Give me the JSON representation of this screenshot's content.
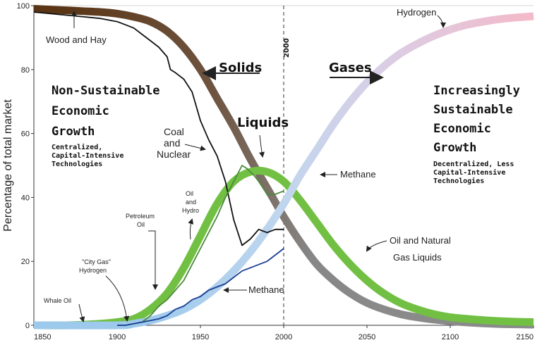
{
  "chart_data": {
    "type": "line",
    "ylabel": "Percentage of total market",
    "xlim": [
      1850,
      2150
    ],
    "ylim": [
      0,
      100
    ],
    "x_ticks": [
      "1850",
      "1900",
      "1950",
      "2000",
      "2050",
      "2100",
      "2150"
    ],
    "y_ticks": [
      "0",
      "20",
      "40",
      "60",
      "80",
      "100"
    ],
    "vline": {
      "x": 2000,
      "label": "2000"
    },
    "series": [
      {
        "name": "Solids",
        "color_start": "#5a3516",
        "color_end": "#8a8a8a",
        "x": [
          1850,
          1870,
          1890,
          1900,
          1910,
          1920,
          1930,
          1940,
          1950,
          1960,
          1970,
          1980,
          1990,
          2000,
          2010,
          2020,
          2030,
          2040,
          2050,
          2060,
          2070,
          2080,
          2090,
          2100,
          2110,
          2120,
          2130,
          2140,
          2150
        ],
        "y": [
          99,
          98.5,
          98,
          97.5,
          96.5,
          95,
          92,
          87,
          80,
          71,
          62,
          52,
          43,
          34,
          26,
          19,
          14,
          10,
          7,
          5,
          3.5,
          2.5,
          1.8,
          1.3,
          0.9,
          0.6,
          0.4,
          0.3,
          0.2
        ]
      },
      {
        "name": "Liquids",
        "color": "#72c043",
        "x": [
          1850,
          1870,
          1890,
          1900,
          1910,
          1920,
          1930,
          1940,
          1950,
          1960,
          1970,
          1980,
          1990,
          2000,
          2010,
          2020,
          2030,
          2040,
          2050,
          2060,
          2070,
          2080,
          2090,
          2100,
          2110,
          2120,
          2130,
          2140,
          2150
        ],
        "y": [
          0,
          0,
          0.5,
          1,
          2,
          5,
          10,
          18,
          28,
          38,
          45,
          48,
          48,
          45,
          39,
          32,
          25,
          19,
          14,
          10,
          7,
          5,
          3.5,
          2.5,
          2,
          1.6,
          1.3,
          1.1,
          1
        ]
      },
      {
        "name": "Gases",
        "color_start": "#9cc8ea",
        "color_end": "#f2b8c6",
        "x": [
          1850,
          1900,
          1910,
          1920,
          1930,
          1940,
          1950,
          1960,
          1970,
          1980,
          1990,
          2000,
          2010,
          2020,
          2030,
          2040,
          2050,
          2060,
          2070,
          2080,
          2090,
          2100,
          2110,
          2120,
          2130,
          2140,
          2150
        ],
        "y": [
          0,
          0,
          0.5,
          1.5,
          3,
          5,
          8,
          12,
          17,
          23,
          30,
          38,
          47,
          55,
          63,
          70,
          76,
          81,
          85,
          88,
          90.5,
          92.5,
          94,
          95,
          95.8,
          96.3,
          96.7
        ]
      },
      {
        "name": "Wood and Hay / Coal and Nuclear",
        "color": "#111111",
        "x": [
          1850,
          1860,
          1870,
          1880,
          1890,
          1900,
          1905,
          1910,
          1915,
          1920,
          1925,
          1930,
          1932,
          1935,
          1940,
          1945,
          1950,
          1955,
          1960,
          1965,
          1970,
          1975,
          1980,
          1985,
          1990,
          1995,
          2000
        ],
        "y": [
          98,
          97.5,
          97,
          96.5,
          96,
          95,
          94,
          93,
          91,
          89,
          87,
          84,
          80,
          79,
          77,
          73,
          64,
          58,
          53,
          45,
          33,
          25,
          27,
          30,
          29,
          30,
          30
        ]
      },
      {
        "name": "Oil and Hydro",
        "color": "#4a8a3a",
        "x": [
          1900,
          1905,
          1910,
          1915,
          1920,
          1925,
          1930,
          1935,
          1940,
          1945,
          1950,
          1955,
          1960,
          1965,
          1970,
          1975,
          1978,
          1982,
          1985,
          1990,
          1995,
          2000
        ],
        "y": [
          0,
          0,
          0.5,
          1,
          3,
          6,
          8,
          11,
          14,
          19,
          24,
          29,
          34,
          40,
          45,
          50,
          49,
          47,
          45,
          41,
          41,
          42
        ]
      },
      {
        "name": "Methane",
        "color": "#1c3f94",
        "x": [
          1900,
          1905,
          1910,
          1915,
          1920,
          1925,
          1930,
          1935,
          1940,
          1945,
          1950,
          1955,
          1960,
          1965,
          1970,
          1975,
          1980,
          1985,
          1990,
          1995,
          2000
        ],
        "y": [
          0,
          0,
          0.5,
          1,
          1.5,
          2,
          3,
          5,
          6,
          8,
          9,
          11,
          12,
          13,
          15,
          17,
          18,
          19,
          20,
          22,
          24
        ]
      }
    ],
    "labels": {
      "wood_and_hay": "Wood and Hay",
      "solids": "Solids",
      "gases": "Gases",
      "hydrogen_top": "Hydrogen",
      "non_sustainable_1": "Non-Sustainable",
      "non_sustainable_2": "Economic",
      "non_sustainable_3": "Growth",
      "non_sustainable_sub_1": "Centralized,",
      "non_sustainable_sub_2": "Capital-Intensive",
      "non_sustainable_sub_3": "Technologies",
      "coal_1": "Coal",
      "coal_2": "and",
      "coal_3": "Nuclear",
      "liquids": "Liquids",
      "methane_upper": "Methane",
      "sustainable_1": "Increasingly",
      "sustainable_2": "Sustainable",
      "sustainable_3": "Economic",
      "sustainable_4": "Growth",
      "sustainable_sub_1": "Decentralized, Less",
      "sustainable_sub_2": "Capital-Intensive",
      "sustainable_sub_3": "Technologies",
      "oil_hydro_1": "Oil",
      "oil_hydro_2": "and",
      "oil_hydro_3": "Hydro",
      "petroleum_1": "Petroleum",
      "petroleum_2": "Oil",
      "city_gas_1": "\"City Gas\"",
      "city_gas_2": "Hydrogen",
      "oil_ngl_1": "Oil and Natural",
      "oil_ngl_2": "Gas Liquids",
      "methane_lower": "Methane",
      "whale_oil": "Whale Oil"
    }
  }
}
